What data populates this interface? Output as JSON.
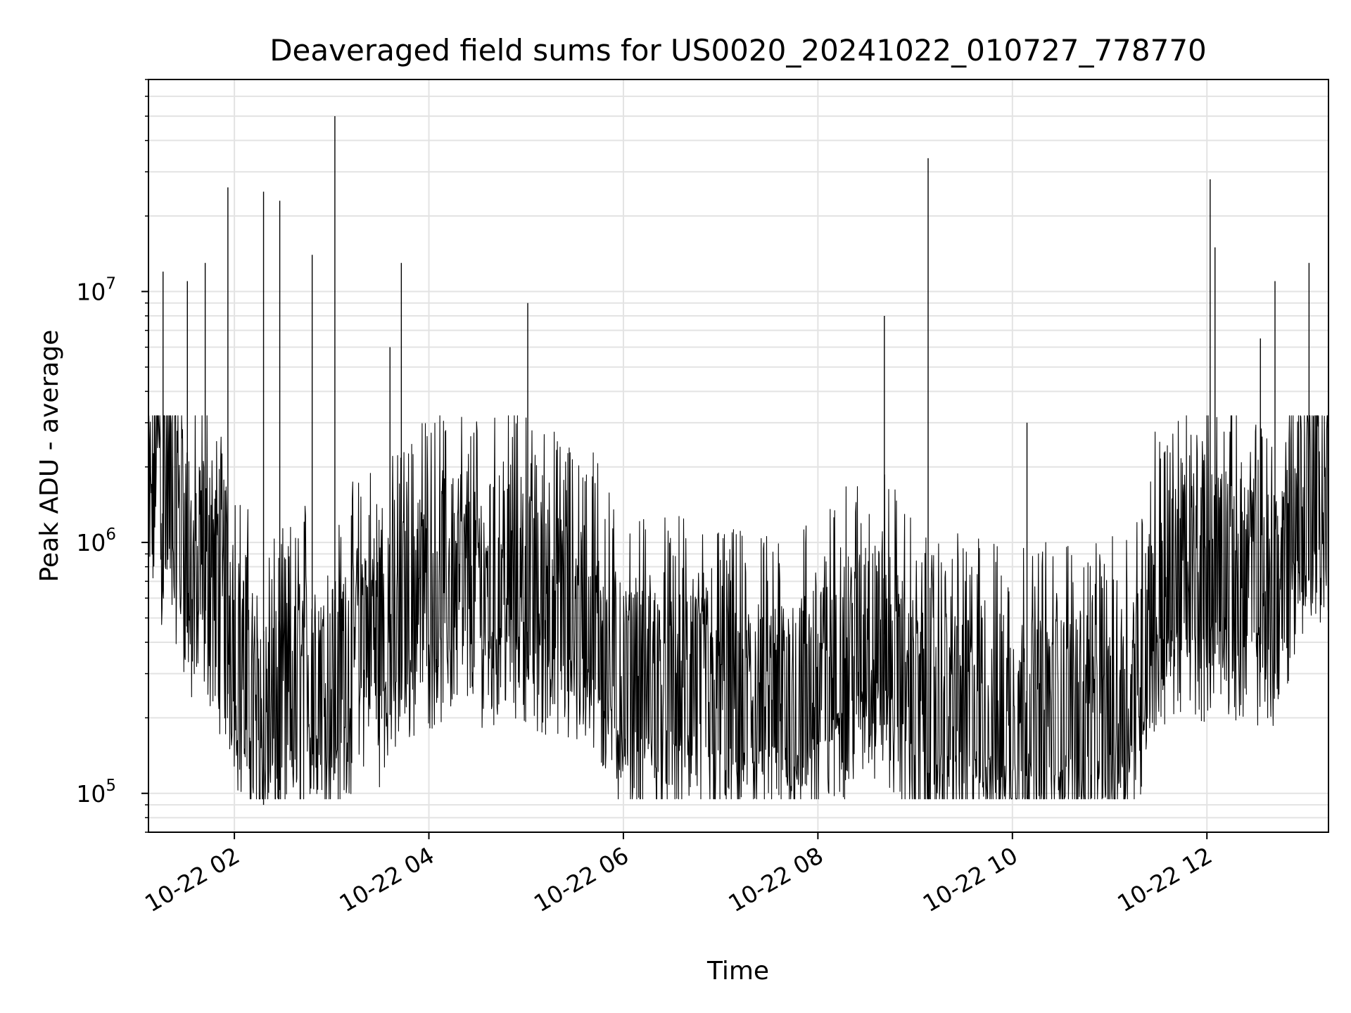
{
  "chart_data": {
    "type": "line",
    "title": "Deaveraged field sums for US0020_20241022_010727_778770",
    "xlabel": "Time",
    "ylabel": "Peak ADU - average",
    "x_scale": "time",
    "y_scale": "log",
    "xlim": [
      "2024-10-22 01:07",
      "2024-10-22 13:15"
    ],
    "ylim": [
      70000,
      70000000
    ],
    "grid": true,
    "x_ticks": [
      "10-22 02",
      "10-22 04",
      "10-22 06",
      "10-22 08",
      "10-22 10",
      "10-22 12"
    ],
    "y_ticks": [
      {
        "base": "10",
        "exp": "5",
        "value": 100000
      },
      {
        "base": "10",
        "exp": "6",
        "value": 1000000
      },
      {
        "base": "10",
        "exp": "7",
        "value": 10000000
      }
    ],
    "line_color": "#000000",
    "series": [
      {
        "x": [
          "2024-10-22 01:07",
          "2024-10-22 01:10",
          "2024-10-22 01:12",
          "2024-10-22 01:15",
          "2024-10-22 01:20",
          "2024-10-22 01:25",
          "2024-10-22 01:30",
          "2024-10-22 01:35",
          "2024-10-22 01:40",
          "2024-10-22 01:45",
          "2024-10-22 01:50",
          "2024-10-22 01:55",
          "2024-10-22 02:00",
          "2024-10-22 02:10",
          "2024-10-22 02:14",
          "2024-10-22 02:20",
          "2024-10-22 02:25",
          "2024-10-22 02:30",
          "2024-10-22 02:40",
          "2024-10-22 02:44",
          "2024-10-22 02:50",
          "2024-10-22 03:00",
          "2024-10-22 03:02",
          "2024-10-22 03:10",
          "2024-10-22 03:20",
          "2024-10-22 03:30",
          "2024-10-22 03:37",
          "2024-10-22 03:43",
          "2024-10-22 03:50",
          "2024-10-22 04:00",
          "2024-10-22 04:15",
          "2024-10-22 04:30",
          "2024-10-22 04:45",
          "2024-10-22 05:00",
          "2024-10-22 05:02",
          "2024-10-22 05:15",
          "2024-10-22 05:30",
          "2024-10-22 05:45",
          "2024-10-22 06:00",
          "2024-10-22 06:30",
          "2024-10-22 07:00",
          "2024-10-22 07:30",
          "2024-10-22 08:00",
          "2024-10-22 08:15",
          "2024-10-22 08:30",
          "2024-10-22 08:40",
          "2024-10-22 08:50",
          "2024-10-22 09:00",
          "2024-10-22 09:07",
          "2024-10-22 09:15",
          "2024-10-22 09:30",
          "2024-10-22 10:00",
          "2024-10-22 10:10",
          "2024-10-22 10:30",
          "2024-10-22 11:00",
          "2024-10-22 11:15",
          "2024-10-22 11:30",
          "2024-10-22 11:45",
          "2024-10-22 12:00",
          "2024-10-22 12:02",
          "2024-10-22 12:05",
          "2024-10-22 12:20",
          "2024-10-22 12:35",
          "2024-10-22 12:45",
          "2024-10-22 12:55",
          "2024-10-22 13:05",
          "2024-10-22 13:15"
        ],
        "y": [
          1000000,
          1200000,
          3500000,
          1300000,
          1200000,
          1100000,
          800000,
          500000,
          700000,
          600000,
          500000,
          450000,
          300000,
          200000,
          150000,
          150000,
          160000,
          180000,
          200000,
          250000,
          200000,
          180000,
          200000,
          250000,
          350000,
          300000,
          350000,
          400000,
          450000,
          500000,
          550000,
          500000,
          550000,
          550000,
          500000,
          450000,
          400000,
          350000,
          200000,
          200000,
          180000,
          170000,
          200000,
          250000,
          300000,
          320000,
          250000,
          180000,
          160000,
          160000,
          170000,
          150000,
          160000,
          160000,
          160000,
          200000,
          500000,
          550000,
          550000,
          550000,
          600000,
          550000,
          500000,
          500000,
          1100000,
          1200000,
          1100000
        ]
      }
    ],
    "spikes": [
      {
        "x": "2024-10-22 01:16",
        "y": 12000000
      },
      {
        "x": "2024-10-22 01:31",
        "y": 11000000
      },
      {
        "x": "2024-10-22 01:42",
        "y": 13000000
      },
      {
        "x": "2024-10-22 01:56",
        "y": 26000000
      },
      {
        "x": "2024-10-22 02:18",
        "y": 25000000
      },
      {
        "x": "2024-10-22 02:28",
        "y": 23000000
      },
      {
        "x": "2024-10-22 02:48",
        "y": 14000000
      },
      {
        "x": "2024-10-22 03:02",
        "y": 50000000
      },
      {
        "x": "2024-10-22 03:36",
        "y": 6000000
      },
      {
        "x": "2024-10-22 03:43",
        "y": 13000000
      },
      {
        "x": "2024-10-22 05:01",
        "y": 9000000
      },
      {
        "x": "2024-10-22 08:41",
        "y": 8000000
      },
      {
        "x": "2024-10-22 09:08",
        "y": 34000000
      },
      {
        "x": "2024-10-22 10:09",
        "y": 3000000
      },
      {
        "x": "2024-10-22 12:02",
        "y": 28000000
      },
      {
        "x": "2024-10-22 12:05",
        "y": 15000000
      },
      {
        "x": "2024-10-22 12:33",
        "y": 6500000
      },
      {
        "x": "2024-10-22 12:42",
        "y": 11000000
      },
      {
        "x": "2024-10-22 13:03",
        "y": 13000000
      }
    ]
  }
}
